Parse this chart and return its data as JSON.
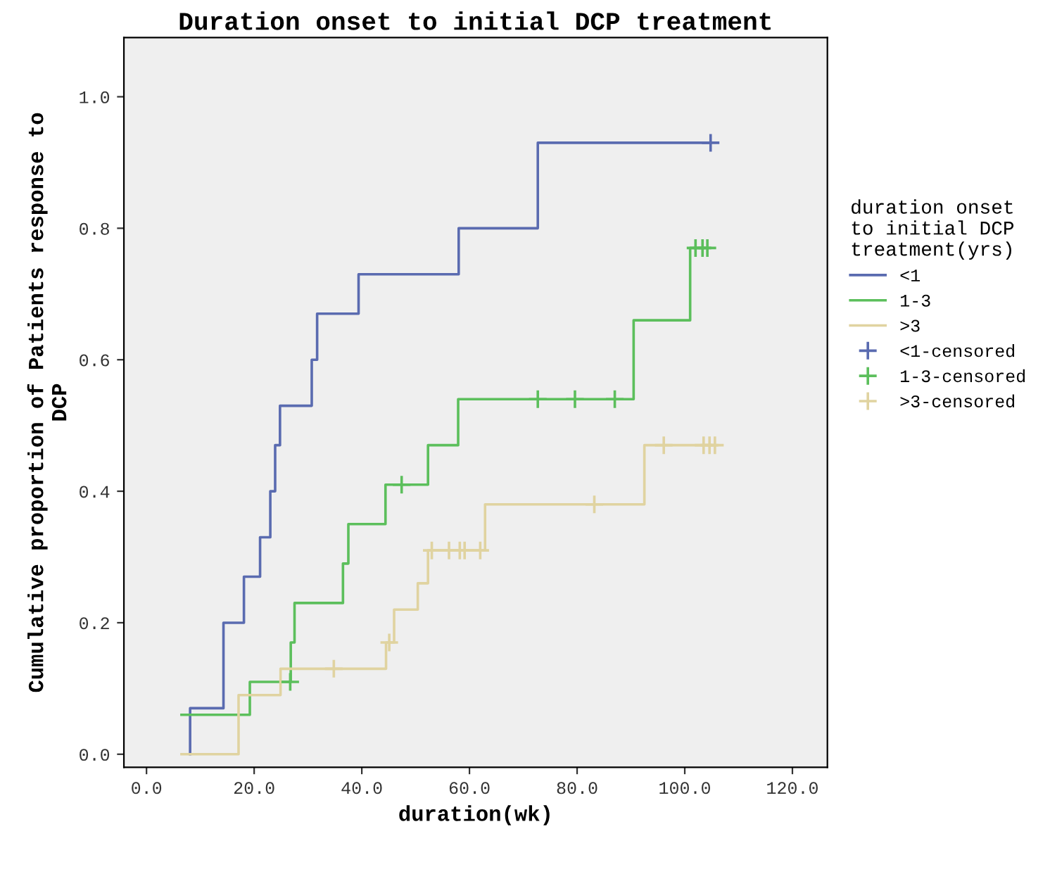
{
  "chart_data": {
    "type": "step",
    "title": "Duration onset to initial DCP treatment",
    "xlabel": "duration(wk)",
    "ylabel": "Cumulative proportion of Patients response to\nDCP",
    "legend_title": "duration onset\nto initial DCP\ntreatment(yrs)",
    "legend": "right",
    "grid": false,
    "xlim": [
      -4.2,
      126.5
    ],
    "ylim": [
      -0.02,
      1.09
    ],
    "xticks": [
      {
        "value": 0,
        "label": "0.0"
      },
      {
        "value": 20,
        "label": "20.0"
      },
      {
        "value": 40,
        "label": "40.0"
      },
      {
        "value": 60,
        "label": "60.0"
      },
      {
        "value": 80,
        "label": "80.0"
      },
      {
        "value": 100,
        "label": "100.0"
      },
      {
        "value": 120,
        "label": "120.0"
      }
    ],
    "yticks": [
      {
        "value": 0,
        "label": "0.0"
      },
      {
        "value": 0.2,
        "label": "0.2"
      },
      {
        "value": 0.4,
        "label": "0.4"
      },
      {
        "value": 0.6,
        "label": "0.6"
      },
      {
        "value": 0.8,
        "label": "0.8"
      },
      {
        "value": 1.0,
        "label": "1.0"
      }
    ],
    "series": [
      {
        "name": "<1",
        "color": "#5a6bb0",
        "x": [
          8.1,
          8.1,
          14.3,
          18.1,
          21.1,
          23.0,
          23.9,
          24.8,
          30.7,
          31.7,
          39.4,
          58.0,
          72.7,
          104.8
        ],
        "values": [
          0,
          0.07,
          0.2,
          0.27,
          0.33,
          0.4,
          0.47,
          0.53,
          0.6,
          0.67,
          0.73,
          0.8,
          0.93,
          0.93
        ]
      },
      {
        "name": "1-3",
        "color": "#5cbf5c",
        "x": [
          6.5,
          19.2,
          26.8,
          27.5,
          36.5,
          37.5,
          44.4,
          52.3,
          57.9,
          90.5,
          101.0,
          104.2
        ],
        "values": [
          0.06,
          0.11,
          0.17,
          0.23,
          0.29,
          0.35,
          0.41,
          0.47,
          0.54,
          0.66,
          0.77,
          0.77
        ]
      },
      {
        "name": ">3",
        "color": "#e0d3a0",
        "x": [
          6.5,
          17.1,
          24.9,
          44.5,
          46.0,
          50.4,
          52.3,
          62.9,
          92.5,
          105.6
        ],
        "values": [
          0,
          0.09,
          0.13,
          0.17,
          0.22,
          0.26,
          0.31,
          0.38,
          0.47,
          0.47
        ]
      },
      {
        "name": "<1-censored",
        "type": "scatter",
        "marker": "cross",
        "color": "#5a6bb0",
        "x": [
          104.8
        ],
        "values": [
          0.93
        ]
      },
      {
        "name": "1-3-censored",
        "type": "scatter",
        "marker": "cross",
        "color": "#5cbf5c",
        "x": [
          26.7,
          47.4,
          72.7,
          79.6,
          87.0,
          102.0,
          103.3,
          104.2
        ],
        "values": [
          0.11,
          0.41,
          0.54,
          0.54,
          0.54,
          0.77,
          0.77,
          0.77
        ]
      },
      {
        "name": ">3-censored",
        "type": "scatter",
        "marker": "cross",
        "color": "#e0d3a0",
        "x": [
          34.8,
          45.1,
          53.0,
          56.2,
          58.2,
          59.1,
          62.0,
          83.2,
          96.1,
          103.5,
          104.6,
          105.6
        ],
        "values": [
          0.13,
          0.17,
          0.31,
          0.31,
          0.31,
          0.31,
          0.31,
          0.38,
          0.47,
          0.47,
          0.47,
          0.47
        ]
      }
    ]
  }
}
